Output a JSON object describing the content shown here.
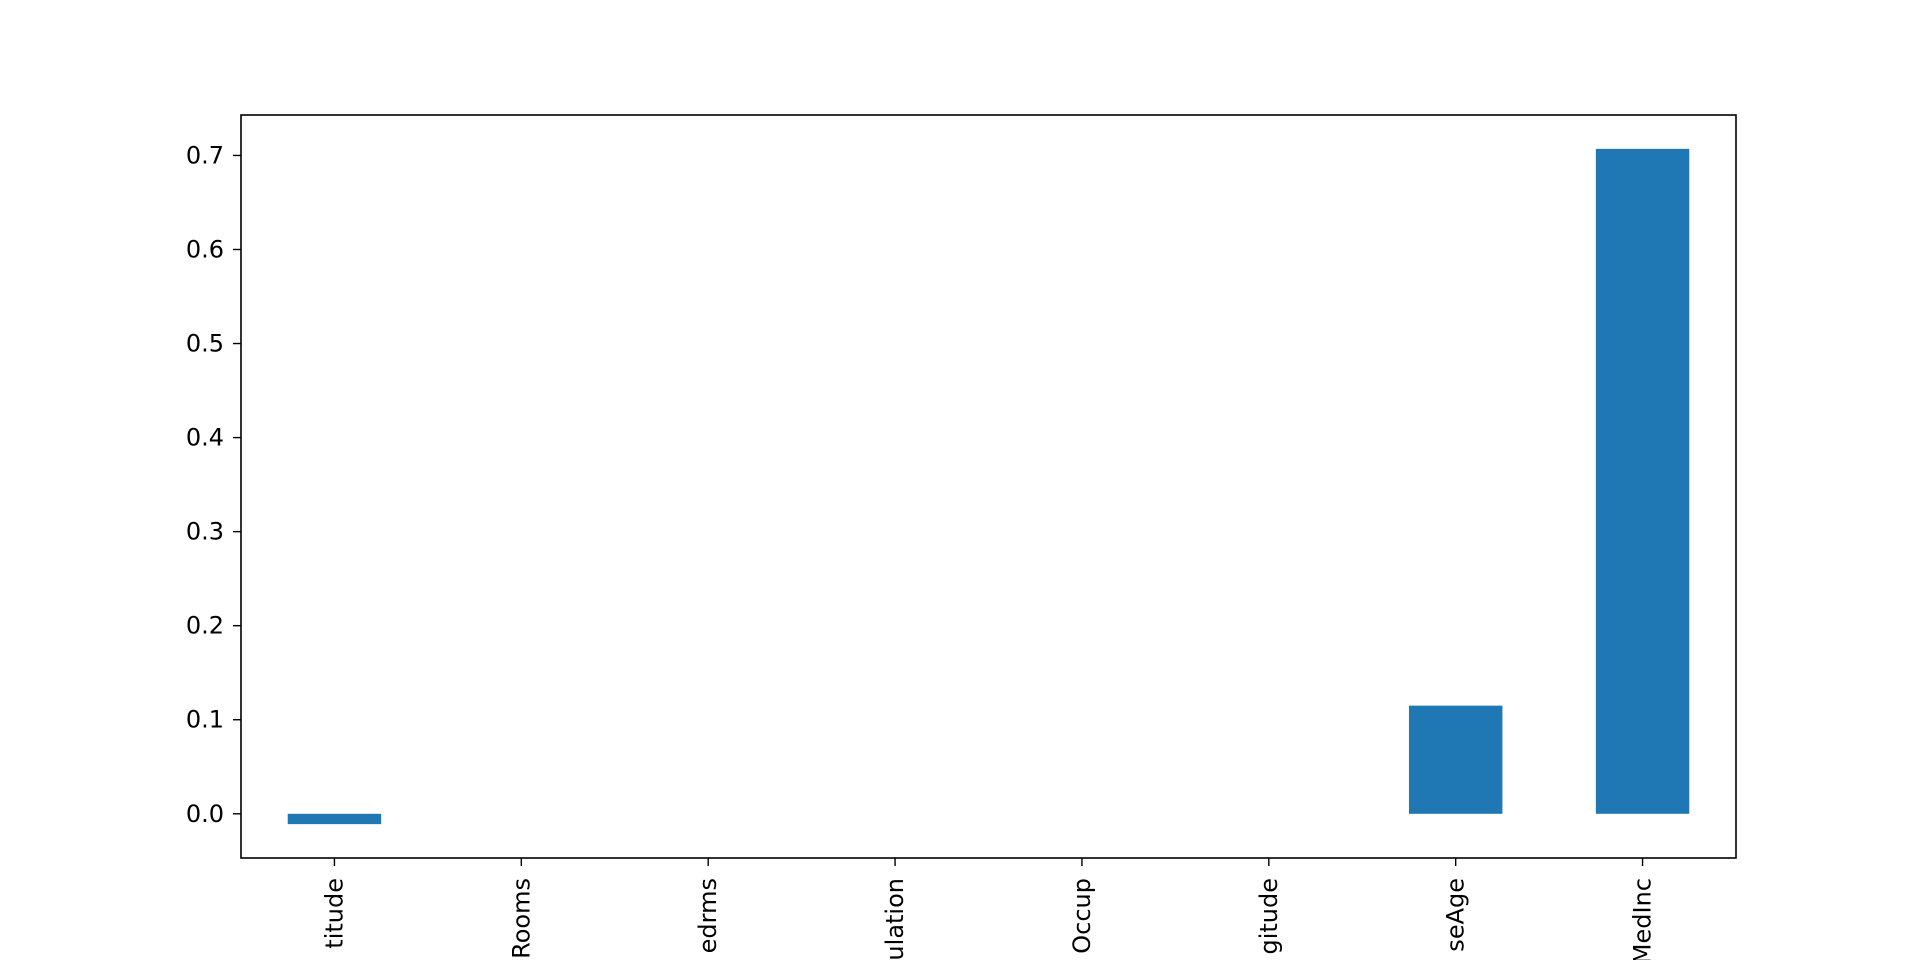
{
  "chart_data": {
    "type": "bar",
    "title": "",
    "xlabel": "",
    "ylabel": "",
    "categories": [
      "Latitude",
      "AveRooms",
      "AveBedrms",
      "Population",
      "AveOccup",
      "Longitude",
      "HouseAge",
      "MedInc"
    ],
    "category_labels": [
      "titude",
      "Rooms",
      "edrms",
      "ulation",
      "Occup",
      "gitude",
      "seAge",
      "MedInc"
    ],
    "values": [
      -0.011,
      0.0,
      0.0,
      0.0,
      0.0,
      0.0,
      0.115,
      0.707
    ],
    "ylim": [
      -0.047,
      0.743
    ],
    "yticks": [
      0.0,
      0.1,
      0.2,
      0.3,
      0.4,
      0.5,
      0.6,
      0.7
    ],
    "ytick_labels": [
      "0.0",
      "0.1",
      "0.2",
      "0.3",
      "0.4",
      "0.5",
      "0.6",
      "0.7"
    ],
    "bar_color": "#1f77b4",
    "grid": false,
    "legend": "none"
  }
}
